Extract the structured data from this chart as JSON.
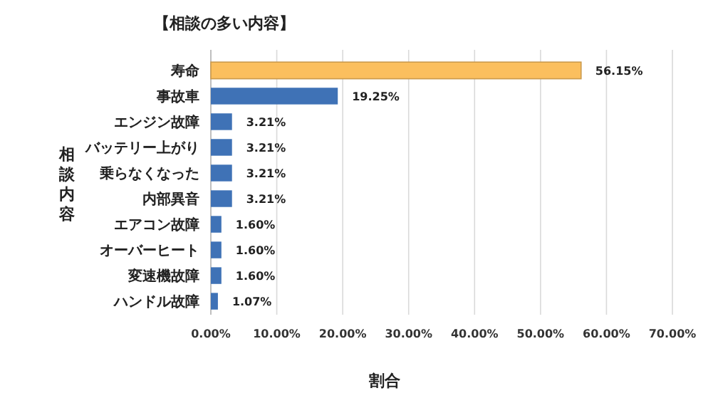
{
  "chart_data": {
    "type": "bar",
    "orientation": "horizontal",
    "title": "【相談の多い内容】",
    "xlabel": "割合",
    "ylabel": "相談内容",
    "categories": [
      "寿命",
      "事故車",
      "エンジン故障",
      "バッテリー上がり",
      "乗らなくなった",
      "内部異音",
      "エアコン故障",
      "オーバーヒート",
      "変速機故障",
      "ハンドル故障"
    ],
    "values": [
      56.15,
      19.25,
      3.21,
      3.21,
      3.21,
      3.21,
      1.6,
      1.6,
      1.6,
      1.07
    ],
    "value_labels": [
      "56.15%",
      "19.25%",
      "3.21%",
      "3.21%",
      "3.21%",
      "3.21%",
      "1.60%",
      "1.60%",
      "1.60%",
      "1.07%"
    ],
    "colors": [
      "#fbbf5e",
      "#3f72b6",
      "#3f72b6",
      "#3f72b6",
      "#3f72b6",
      "#3f72b6",
      "#3f72b6",
      "#3f72b6",
      "#3f72b6",
      "#3f72b6"
    ],
    "xlim": [
      0,
      70
    ],
    "xticks": [
      {
        "value": 0,
        "label": "0.00%"
      },
      {
        "value": 10,
        "label": "10.00%"
      },
      {
        "value": 20,
        "label": "20.00%"
      },
      {
        "value": 30,
        "label": "30.00%"
      },
      {
        "value": 40,
        "label": "40.00%"
      },
      {
        "value": 50,
        "label": "50.00%"
      },
      {
        "value": 60,
        "label": "60.00%"
      },
      {
        "value": 70,
        "label": "70.00%"
      }
    ],
    "grid": "x"
  }
}
